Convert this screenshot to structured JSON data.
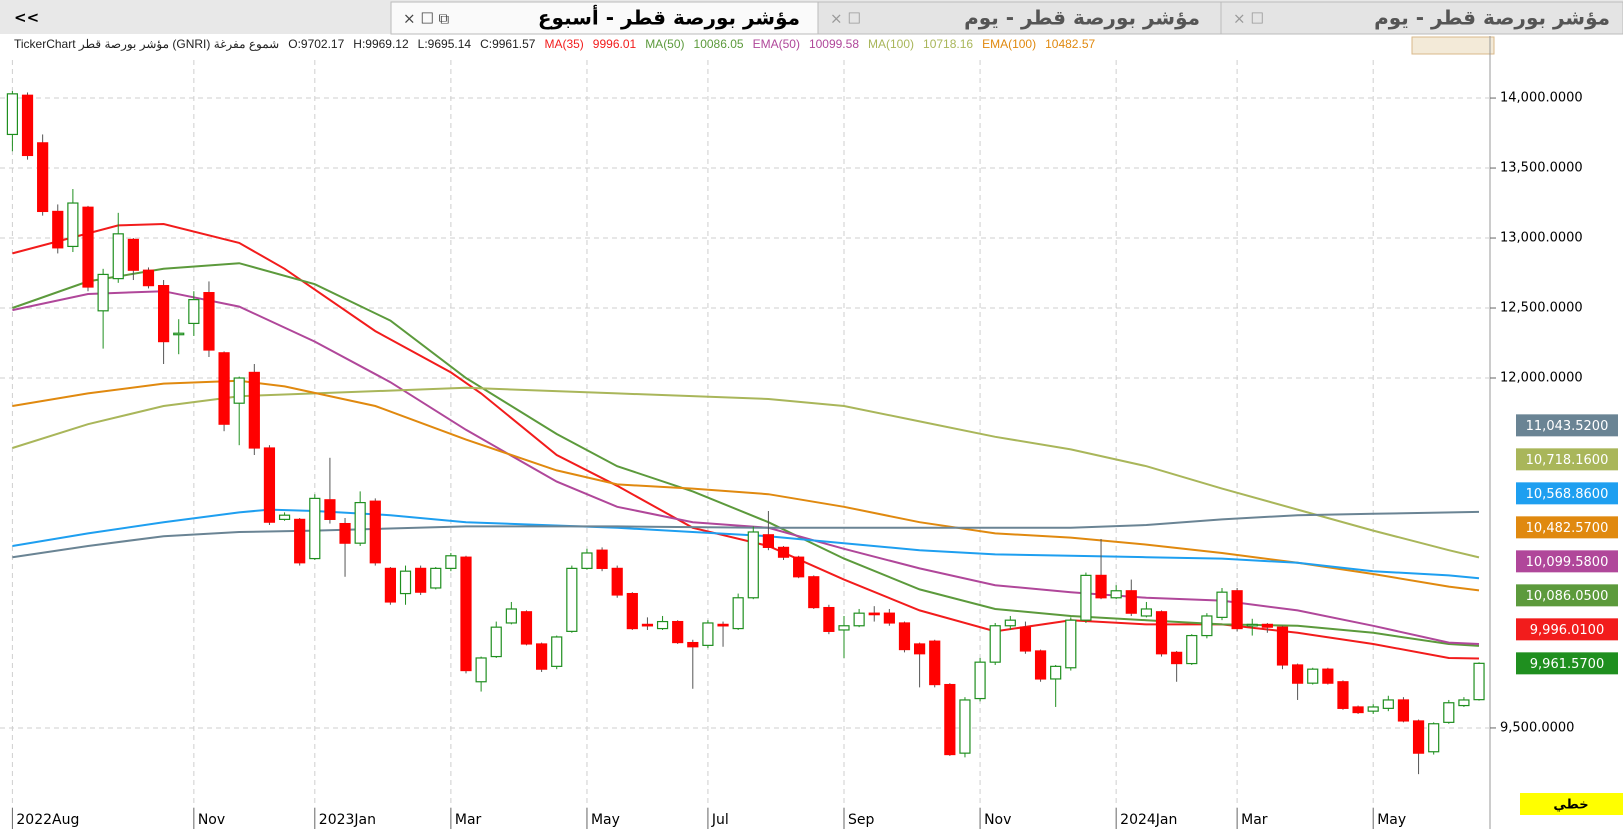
{
  "tabs": [
    "مؤشر بورصة قطر - أسبوع",
    "مؤشر بورصة قطر - يوم",
    "مؤشر بورصة قطر - يوم"
  ],
  "corner_button": "<<",
  "style_button": "خطي",
  "chart_data": {
    "type": "candlestick",
    "source": "TickerChart مؤشر بورصة قطر (GNRI)  شموع مفرغة",
    "ohlc_labels": [
      "O:9702.17",
      "H:9969.12",
      "L:9695.14",
      "C:9961.57"
    ],
    "last_label": "9,961.5700",
    "up_color": "#1f8f1f",
    "down_color": "#ff0000",
    "ylim": [
      8971,
      14429
    ],
    "yticks": [
      {
        "value": 9500,
        "label": "9,500.0000"
      },
      {
        "value": 12000,
        "label": "12,000.0000"
      },
      {
        "value": 12500,
        "label": "12,500.0000"
      },
      {
        "value": 13000,
        "label": "13,000.0000"
      },
      {
        "value": 13500,
        "label": "13,500.0000"
      },
      {
        "value": 14000,
        "label": "14,000.0000"
      }
    ],
    "xlim": [
      0,
      97
    ],
    "xticks": [
      {
        "value": 0,
        "label": "2022Aug"
      },
      {
        "value": 12,
        "label": "Nov"
      },
      {
        "value": 20,
        "label": "2023Jan"
      },
      {
        "value": 29,
        "label": "Mar"
      },
      {
        "value": 38,
        "label": "May"
      },
      {
        "value": 46,
        "label": "Jul"
      },
      {
        "value": 55,
        "label": "Sep"
      },
      {
        "value": 64,
        "label": "Nov"
      },
      {
        "value": 73,
        "label": "2024Jan"
      },
      {
        "value": 81,
        "label": "Mar"
      },
      {
        "value": 90,
        "label": "May"
      }
    ],
    "grid": true,
    "ohlc": [
      [
        13740,
        14050,
        13620,
        14030
      ],
      [
        14020,
        14040,
        13560,
        13590
      ],
      [
        13680,
        13740,
        13160,
        13190
      ],
      [
        13190,
        13240,
        12890,
        12930
      ],
      [
        12940,
        13350,
        12900,
        13250
      ],
      [
        13220,
        13230,
        12620,
        12650
      ],
      [
        12480,
        12780,
        12210,
        12740
      ],
      [
        12710,
        13180,
        12680,
        13030
      ],
      [
        12990,
        13000,
        12700,
        12770
      ],
      [
        12770,
        12790,
        12640,
        12660
      ],
      [
        12660,
        12700,
        12100,
        12260
      ],
      [
        12310,
        12420,
        12170,
        12320
      ],
      [
        12390,
        12620,
        12300,
        12560
      ],
      [
        12610,
        12690,
        12150,
        12200
      ],
      [
        12180,
        12190,
        11620,
        11670
      ],
      [
        11820,
        12010,
        11520,
        12000
      ],
      [
        12040,
        12100,
        11450,
        11500
      ],
      [
        11500,
        11520,
        10950,
        10970
      ],
      [
        10990,
        11040,
        10980,
        11020
      ],
      [
        10990,
        11000,
        10660,
        10680
      ],
      [
        10710,
        11170,
        10700,
        11140
      ],
      [
        11130,
        11430,
        10960,
        10990
      ],
      [
        10960,
        11000,
        10580,
        10820
      ],
      [
        10820,
        11190,
        10800,
        11110
      ],
      [
        11120,
        11140,
        10660,
        10680
      ],
      [
        10640,
        10650,
        10380,
        10400
      ],
      [
        10460,
        10660,
        10380,
        10620
      ],
      [
        10640,
        10660,
        10450,
        10470
      ],
      [
        10500,
        10650,
        10490,
        10640
      ],
      [
        10640,
        10750,
        10620,
        10730
      ],
      [
        10720,
        10730,
        9890,
        9910
      ],
      [
        9830,
        10010,
        9760,
        10000
      ],
      [
        10010,
        10260,
        10000,
        10220
      ],
      [
        10250,
        10400,
        10240,
        10350
      ],
      [
        10330,
        10340,
        10090,
        10100
      ],
      [
        10100,
        10110,
        9900,
        9920
      ],
      [
        9940,
        10160,
        9920,
        10150
      ],
      [
        10190,
        10660,
        10180,
        10640
      ],
      [
        10640,
        10780,
        10630,
        10750
      ],
      [
        10770,
        10790,
        10620,
        10640
      ],
      [
        10640,
        10660,
        10430,
        10450
      ],
      [
        10460,
        10470,
        10200,
        10210
      ],
      [
        10240,
        10290,
        10200,
        10230
      ],
      [
        10210,
        10300,
        10200,
        10260
      ],
      [
        10260,
        10270,
        10100,
        10110
      ],
      [
        10110,
        10130,
        9780,
        10080
      ],
      [
        10090,
        10270,
        10070,
        10250
      ],
      [
        10240,
        10260,
        10080,
        10230
      ],
      [
        10210,
        10460,
        10200,
        10430
      ],
      [
        10430,
        10940,
        10420,
        10900
      ],
      [
        10880,
        11050,
        10770,
        10790
      ],
      [
        10790,
        10800,
        10700,
        10720
      ],
      [
        10720,
        10730,
        10570,
        10580
      ],
      [
        10580,
        10590,
        10350,
        10360
      ],
      [
        10360,
        10380,
        10170,
        10190
      ],
      [
        10200,
        10300,
        10000,
        10230
      ],
      [
        10230,
        10350,
        10220,
        10320
      ],
      [
        10320,
        10370,
        10260,
        10310
      ],
      [
        10320,
        10350,
        10230,
        10250
      ],
      [
        10250,
        10260,
        10040,
        10060
      ],
      [
        10100,
        10110,
        9790,
        10030
      ],
      [
        10120,
        10130,
        9790,
        9810
      ],
      [
        9810,
        9820,
        9300,
        9310
      ],
      [
        9320,
        9720,
        9290,
        9700
      ],
      [
        9710,
        10000,
        9690,
        9970
      ],
      [
        9970,
        10250,
        9950,
        10230
      ],
      [
        10230,
        10300,
        10200,
        10270
      ],
      [
        10220,
        10260,
        10030,
        10050
      ],
      [
        10050,
        10060,
        9830,
        9850
      ],
      [
        9850,
        9950,
        9650,
        9940
      ],
      [
        9930,
        10290,
        9910,
        10270
      ],
      [
        10270,
        10610,
        10250,
        10590
      ],
      [
        10590,
        10850,
        10420,
        10430
      ],
      [
        10430,
        10520,
        10420,
        10480
      ],
      [
        10480,
        10560,
        10300,
        10320
      ],
      [
        10300,
        10400,
        10290,
        10350
      ],
      [
        10330,
        10340,
        10010,
        10030
      ],
      [
        10040,
        10050,
        9830,
        9960
      ],
      [
        9960,
        10170,
        9950,
        10160
      ],
      [
        10160,
        10320,
        10140,
        10300
      ],
      [
        10290,
        10500,
        10270,
        10470
      ],
      [
        10480,
        10500,
        10190,
        10210
      ],
      [
        10230,
        10280,
        10160,
        10240
      ],
      [
        10240,
        10250,
        10180,
        10220
      ],
      [
        10220,
        10230,
        9920,
        9950
      ],
      [
        9950,
        9960,
        9700,
        9820
      ],
      [
        9820,
        9930,
        9810,
        9920
      ],
      [
        9920,
        9930,
        9810,
        9820
      ],
      [
        9830,
        9840,
        9630,
        9640
      ],
      [
        9650,
        9660,
        9600,
        9610
      ],
      [
        9620,
        9670,
        9600,
        9650
      ],
      [
        9640,
        9730,
        9620,
        9700
      ],
      [
        9700,
        9720,
        9540,
        9550
      ],
      [
        9550,
        9560,
        9170,
        9320
      ],
      [
        9330,
        9540,
        9310,
        9530
      ],
      [
        9540,
        9700,
        9530,
        9680
      ],
      [
        9660,
        9720,
        9650,
        9700
      ],
      [
        9702.17,
        9969.12,
        9695.14,
        9961.57
      ]
    ],
    "series": [
      {
        "name": "MA(35)",
        "legend_value": "9996.01",
        "last_label": "9,996.0100",
        "color": "#f21c1c",
        "x": [
          0,
          7,
          10,
          15,
          18,
          24,
          29,
          31,
          36,
          40,
          45,
          50,
          55,
          60,
          65,
          70,
          75,
          80,
          85,
          90,
          95,
          97
        ],
        "values": [
          12890,
          13090,
          13100,
          12965,
          12780,
          12335,
          12040,
          11890,
          11450,
          11230,
          10930,
          10800,
          10560,
          10340,
          10190,
          10270,
          10240,
          10240,
          10180,
          10100,
          10000,
          9996.01
        ]
      },
      {
        "name": "MA(50)",
        "legend_value": "10086.05",
        "last_label": "10,086.0500",
        "color": "#5c9a3c",
        "x": [
          0,
          5,
          10,
          15,
          20,
          25,
          30,
          36,
          40,
          45,
          50,
          55,
          60,
          65,
          70,
          75,
          80,
          85,
          90,
          95,
          97
        ],
        "values": [
          12500,
          12690,
          12780,
          12820,
          12670,
          12410,
          12000,
          11600,
          11370,
          11190,
          10970,
          10710,
          10490,
          10350,
          10300,
          10270,
          10240,
          10230,
          10180,
          10100,
          10086.05
        ]
      },
      {
        "name": "EMA(50)",
        "legend_value": "10099.58",
        "last_label": "10,099.5800",
        "color": "#b0479a",
        "x": [
          0,
          5,
          10,
          15,
          20,
          25,
          30,
          36,
          40,
          45,
          50,
          55,
          60,
          65,
          70,
          75,
          80,
          85,
          90,
          95,
          97
        ],
        "values": [
          12485,
          12600,
          12620,
          12510,
          12260,
          11970,
          11630,
          11260,
          11080,
          10970,
          10930,
          10780,
          10640,
          10520,
          10470,
          10430,
          10410,
          10340,
          10230,
          10110,
          10099.58
        ]
      },
      {
        "name": "MA(100)",
        "legend_value": "10718.16",
        "last_label": "10,718.1600",
        "color": "#a9b65a",
        "x": [
          0,
          5,
          10,
          15,
          20,
          25,
          30,
          40,
          50,
          55,
          60,
          65,
          70,
          75,
          80,
          85,
          90,
          95,
          97
        ],
        "values": [
          11500,
          11670,
          11800,
          11870,
          11890,
          11910,
          11930,
          11890,
          11850,
          11800,
          11690,
          11580,
          11490,
          11370,
          11210,
          11060,
          10910,
          10770,
          10718.16
        ]
      },
      {
        "name": "EMA(100)",
        "legend_value": "10482.57",
        "last_label": "10,482.5700",
        "color": "#e0890f",
        "x": [
          0,
          5,
          10,
          15,
          18,
          24,
          30,
          36,
          40,
          45,
          50,
          55,
          60,
          65,
          70,
          75,
          80,
          85,
          90,
          95,
          97
        ],
        "values": [
          11800,
          11890,
          11960,
          11980,
          11940,
          11800,
          11560,
          11340,
          11240,
          11210,
          11170,
          11080,
          10970,
          10890,
          10860,
          10810,
          10750,
          10680,
          10600,
          10510,
          10482.57
        ]
      },
      {
        "last_label": "10,568.8600",
        "color": "#1e9ff0",
        "x": [
          0,
          5,
          10,
          15,
          17,
          20,
          25,
          30,
          40,
          45,
          50,
          55,
          60,
          65,
          70,
          75,
          80,
          85,
          90,
          95,
          97
        ],
        "values": [
          10800,
          10890,
          10970,
          11040,
          11060,
          11050,
          11020,
          10970,
          10930,
          10900,
          10870,
          10820,
          10770,
          10740,
          10730,
          10720,
          10710,
          10680,
          10620,
          10590,
          10568.86
        ]
      },
      {
        "last_label": "11,043.5200",
        "color": "#6a8494",
        "x": [
          0,
          5,
          10,
          15,
          20,
          30,
          40,
          50,
          60,
          70,
          75,
          80,
          85,
          90,
          97
        ],
        "values": [
          10720,
          10800,
          10870,
          10900,
          10910,
          10940,
          10940,
          10930,
          10930,
          10930,
          10950,
          10990,
          11020,
          11030,
          11043.52
        ]
      }
    ]
  }
}
